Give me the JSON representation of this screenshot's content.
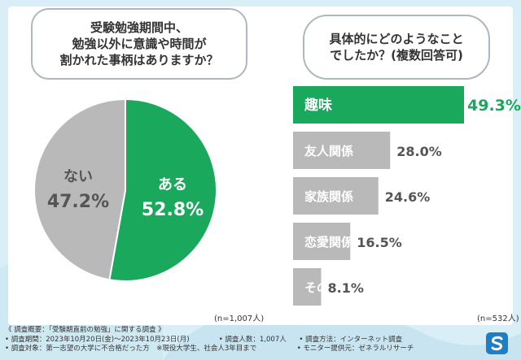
{
  "question_left": [
    "受験勉強期間中、",
    "勉強以外に意識や時間が",
    "割かれた事柄はありますか？"
  ],
  "question_right": [
    "具体的にどのようなこと",
    "でしたか？(複数回答可)"
  ],
  "sample_left": "(n=1,007人)",
  "sample_right": "(n=532人)",
  "colors": {
    "accent": "#1aa85c",
    "gray": "#b9b9b9",
    "bg": "#d9eef6"
  },
  "chart_data": [
    {
      "type": "pie",
      "title": "受験勉強期間中、勉強以外に意識や時間が割かれた事柄はありますか？",
      "slices": [
        {
          "label": "ある",
          "value": 52.8,
          "display": "52.8%"
        },
        {
          "label": "ない",
          "value": 47.2,
          "display": "47.2%"
        }
      ]
    },
    {
      "type": "bar",
      "orientation": "horizontal",
      "title": "具体的にどのようなことでしたか？(複数回答可)",
      "categories": [
        "趣味",
        "友人関係",
        "家族関係",
        "恋愛関係",
        "その他"
      ],
      "values": [
        49.3,
        28.0,
        24.6,
        16.5,
        8.1
      ],
      "displays": [
        "49.3%",
        "28.0%",
        "24.6%",
        "16.5%",
        "8.1%"
      ]
    }
  ],
  "footer": {
    "line1": "《 調査概要：「受験期直前の勉強」に関する調査 》",
    "line2": [
      "• 調査期間：2023年10月20日(金)〜2023年10月23日(月)",
      "• 調査人数：1,007人",
      "• 調査方法：インターネット調査"
    ],
    "line3": [
      "• 調査対象：第一志望の大学に不合格だった方　※現役大学生、社会人3年目まで",
      "• モニター提供元：ゼネラルリサーチ"
    ]
  },
  "logo_icon": "brand-logo-icon"
}
